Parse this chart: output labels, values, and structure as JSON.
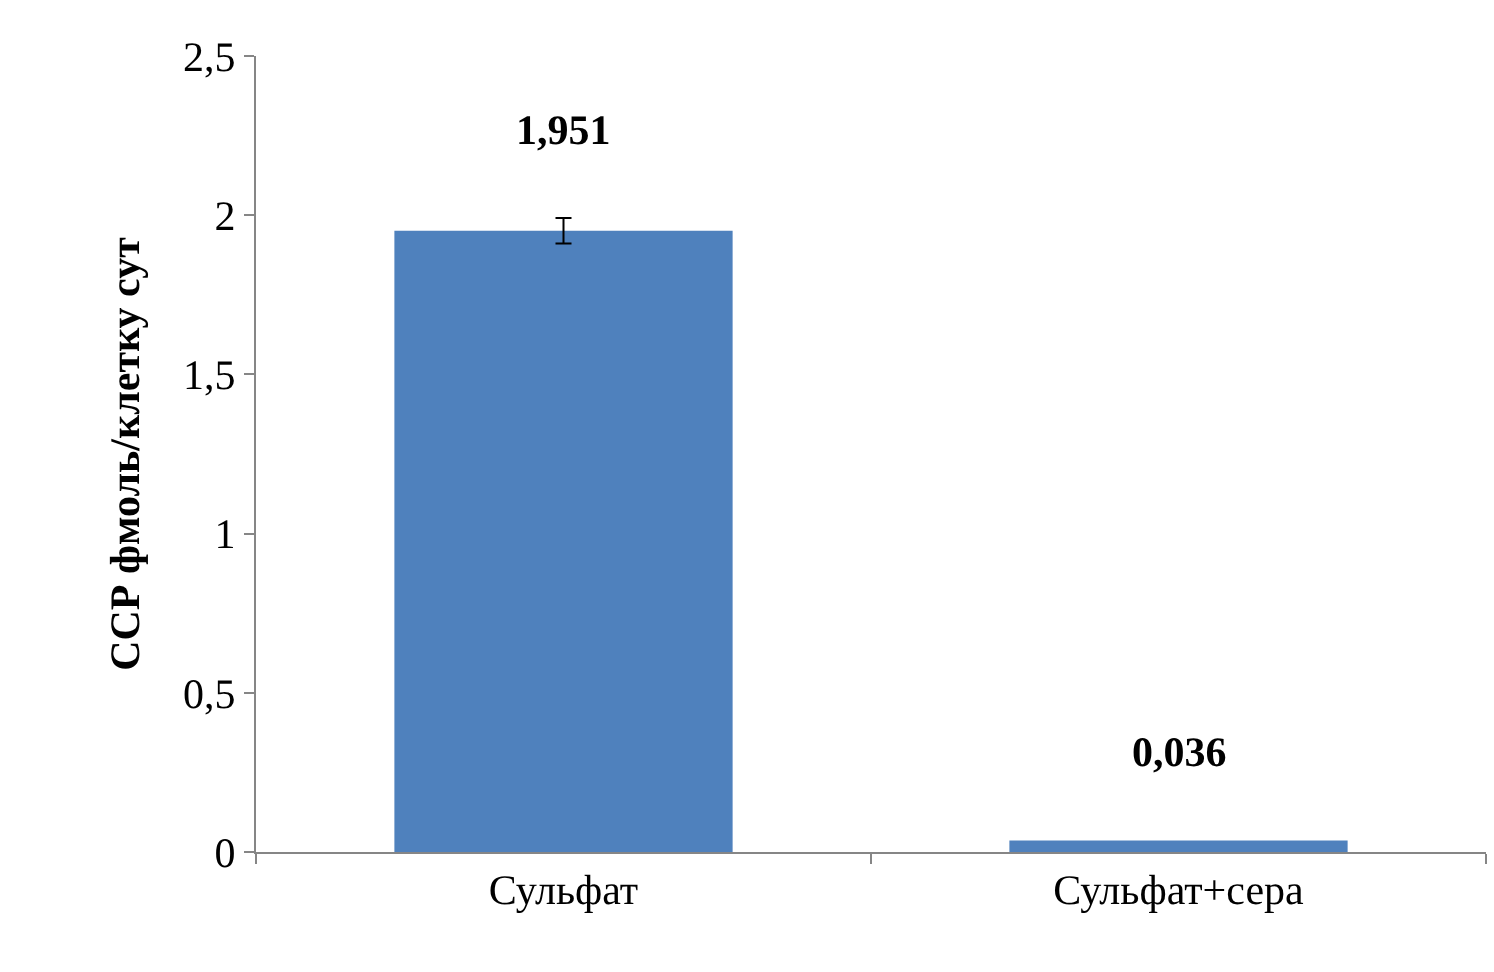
{
  "chart_data": {
    "type": "bar",
    "ylabel": "ССР фмоль/клетку сут",
    "categories": [
      "Сульфат",
      "Сульфат+сера"
    ],
    "values": [
      1.951,
      0.036
    ],
    "value_labels": [
      "1,951",
      "0,036"
    ],
    "errors": [
      0.04,
      null
    ],
    "color": "#4f81bd",
    "ylim": [
      0,
      2.5
    ],
    "yticks": [
      0,
      {
        "value": 0.5,
        "label": "0,5"
      },
      1,
      {
        "value": 1.5,
        "label": "1,5"
      },
      2,
      {
        "value": 2.5,
        "label": "2,5"
      }
    ],
    "grid": false
  }
}
